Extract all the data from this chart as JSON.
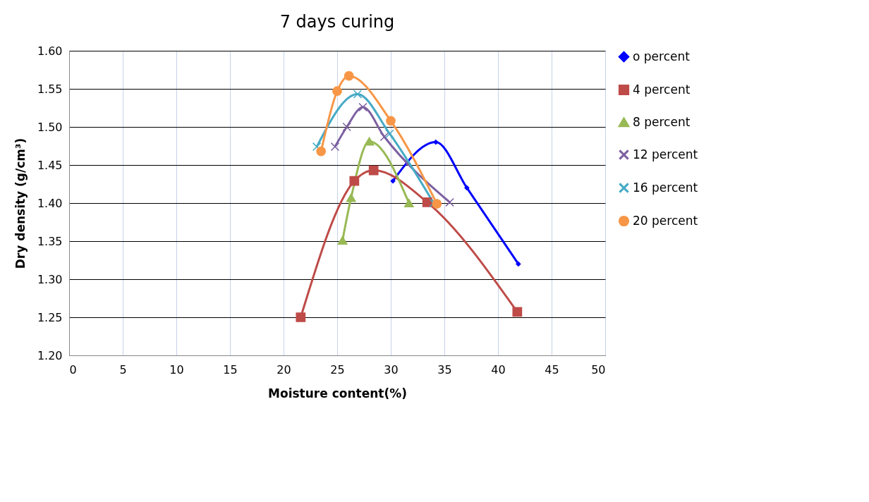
{
  "chart_data": {
    "type": "line",
    "title": "7 days curing",
    "xlabel": "Moisture content(%)",
    "ylabel": "Dry density (g/cm³)",
    "xlim": [
      0,
      50
    ],
    "xticks": [
      0,
      5,
      10,
      15,
      20,
      25,
      30,
      35,
      40,
      45,
      50
    ],
    "ylim": [
      1.2,
      1.6
    ],
    "yticks": [
      {
        "value": 1.2,
        "label": "1.20"
      },
      {
        "value": 1.25,
        "label": "1.25"
      },
      {
        "value": 1.3,
        "label": "1.30"
      },
      {
        "value": 1.35,
        "label": "1.35"
      },
      {
        "value": 1.4,
        "label": "1.40"
      },
      {
        "value": 1.45,
        "label": "1.45"
      },
      {
        "value": 1.5,
        "label": "1.50"
      },
      {
        "value": 1.55,
        "label": "1.55"
      },
      {
        "value": 1.6,
        "label": "1.60"
      }
    ],
    "grid": true,
    "legend": "right",
    "series": [
      {
        "name": "o percent",
        "color": "#0000ff",
        "marker": "diamond",
        "x": [
          30.2,
          34.2,
          37.1,
          41.9
        ],
        "values": [
          1.429,
          1.48,
          1.42,
          1.32
        ]
      },
      {
        "name": "4 percent",
        "color": "#be4b48",
        "marker": "square",
        "x": [
          21.6,
          26.6,
          28.4,
          33.4,
          41.8
        ],
        "values": [
          1.25,
          1.429,
          1.443,
          1.401,
          1.257
        ]
      },
      {
        "name": "8 percent",
        "color": "#98b954",
        "marker": "triangle",
        "x": [
          25.5,
          26.3,
          28.0,
          31.7
        ],
        "values": [
          1.351,
          1.407,
          1.481,
          1.4
        ]
      },
      {
        "name": "12 percent",
        "color": "#7d60a0",
        "marker": "cross",
        "x": [
          24.8,
          25.9,
          27.4,
          29.4,
          35.5
        ],
        "values": [
          1.474,
          1.5,
          1.526,
          1.487,
          1.401
        ]
      },
      {
        "name": "16 percent",
        "color": "#46aac5",
        "marker": "cross",
        "x": [
          23.1,
          26.9,
          29.9,
          34.0
        ],
        "values": [
          1.474,
          1.543,
          1.491,
          1.4
        ]
      },
      {
        "name": "20 percent",
        "color": "#f79646",
        "marker": "circle",
        "x": [
          23.5,
          25.0,
          26.1,
          30.0,
          34.3
        ],
        "values": [
          1.468,
          1.547,
          1.567,
          1.508,
          1.399
        ]
      }
    ]
  }
}
